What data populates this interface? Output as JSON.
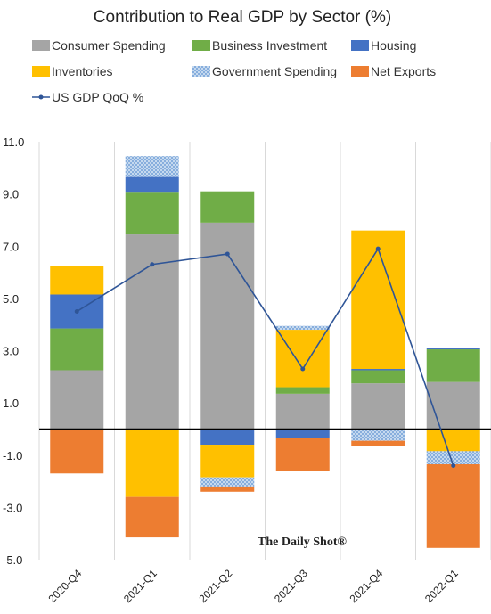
{
  "chart_data": {
    "type": "bar",
    "stacked": true,
    "title": "Contribution to Real GDP by Sector (%)",
    "categories": [
      "2020-Q4",
      "2021-Q1",
      "2021-Q2",
      "2021-Q3",
      "2021-Q4",
      "2022-Q1"
    ],
    "series": [
      {
        "name": "Consumer Spending",
        "color": "#a5a5a5",
        "pattern": "solid",
        "values": [
          2.25,
          7.45,
          7.9,
          1.35,
          1.75,
          1.8
        ]
      },
      {
        "name": "Business Investment",
        "color": "#70ad47",
        "pattern": "solid",
        "values": [
          1.6,
          1.6,
          1.2,
          0.25,
          0.5,
          1.25
        ]
      },
      {
        "name": "Housing",
        "color": "#4472c4",
        "pattern": "solid",
        "values": [
          1.3,
          0.6,
          -0.6,
          -0.35,
          0.05,
          0.05
        ]
      },
      {
        "name": "Inventories",
        "color": "#ffc000",
        "pattern": "solid",
        "values": [
          1.1,
          -2.6,
          -1.25,
          2.2,
          5.3,
          -0.85
        ]
      },
      {
        "name": "Government Spending",
        "color": "#9dc3e6",
        "pattern": "dotted",
        "values": [
          -0.05,
          0.8,
          -0.35,
          0.15,
          -0.45,
          -0.5
        ]
      },
      {
        "name": "Net Exports",
        "color": "#ed7d31",
        "pattern": "solid",
        "values": [
          -1.65,
          -1.55,
          -0.2,
          -1.25,
          -0.2,
          -3.2
        ]
      }
    ],
    "line_series": {
      "name": "US GDP QoQ %",
      "color": "#2f5597",
      "values": [
        4.5,
        6.3,
        6.7,
        2.3,
        6.9,
        -1.4
      ]
    },
    "y_ticks": [
      "11.0",
      "9.0",
      "7.0",
      "5.0",
      "3.0",
      "1.0",
      "-1.0",
      "-3.0",
      "-5.0"
    ],
    "y_tick_values": [
      11,
      9,
      7,
      5,
      3,
      1,
      -1,
      -3,
      -5
    ],
    "ylim": [
      -5,
      11
    ],
    "xlabel": "",
    "ylabel": "",
    "grid": "vertical",
    "legend": "top"
  },
  "watermark": "The Daily Shot®"
}
